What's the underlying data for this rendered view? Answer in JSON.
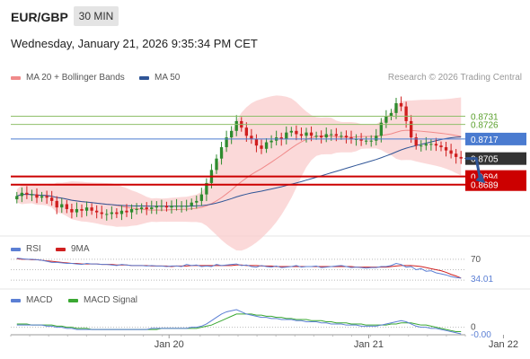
{
  "header": {
    "symbol": "EUR/GBP",
    "interval": "30 MIN",
    "datetime": "Wednesday, January 21, 2026 9:35:34 PM CET",
    "credit": "Research © 2026 Trading Central"
  },
  "legend": {
    "ma20": "MA 20 + Bollinger Bands",
    "ma50": "MA 50",
    "rsi": "RSI",
    "rsi_ma": "9MA",
    "macd": "MACD",
    "macd_signal": "MACD Signal"
  },
  "colors": {
    "candle_up": "#2e8b2e",
    "candle_down": "#d01f1f",
    "bollinger_fill": "#f9c9c9",
    "ma20": "#f08a8a",
    "ma50": "#2f5597",
    "level_green": "#8fbf6a",
    "level_blue": "#4a7bd0",
    "level_red": "#cc0000",
    "rsi": "#5b7fd4",
    "rsi_ma": "#d02020",
    "macd": "#5b7fd4",
    "macd_signal": "#3aa832"
  },
  "chart_data": [
    {
      "type": "candlestick",
      "title": "EUR/GBP 30 MIN",
      "x_tick_labels": [
        "Jan 20",
        "Jan 21",
        "Jan 22"
      ],
      "ylim": [
        0.8658,
        0.875
      ],
      "current_price": "0.8705",
      "levels": [
        {
          "value": "0.8731",
          "color": "green"
        },
        {
          "value": "0.8726",
          "color": "green"
        },
        {
          "value": "0.8717",
          "color": "blue"
        },
        {
          "value": "0.8694",
          "color": "red"
        },
        {
          "value": "0.8689",
          "color": "red"
        }
      ],
      "forecast_arrow": {
        "from": 0.8705,
        "to": 0.8691
      },
      "closes": [
        0.8682,
        0.8684,
        0.8683,
        0.8683,
        0.8681,
        0.8682,
        0.8681,
        0.8679,
        0.8675,
        0.8677,
        0.8674,
        0.8672,
        0.8674,
        0.8673,
        0.8675,
        0.8673,
        0.8672,
        0.8671,
        0.8671,
        0.8672,
        0.8671,
        0.8673,
        0.8672,
        0.8674,
        0.8674,
        0.8675,
        0.8674,
        0.8675,
        0.8676,
        0.8676,
        0.8675,
        0.8676,
        0.8676,
        0.8676,
        0.8676,
        0.8678,
        0.8679,
        0.8683,
        0.869,
        0.8698,
        0.8705,
        0.8712,
        0.8718,
        0.8722,
        0.8728,
        0.8724,
        0.8719,
        0.8717,
        0.8713,
        0.8711,
        0.8715,
        0.8716,
        0.8718,
        0.8717,
        0.8721,
        0.8722,
        0.872,
        0.8719,
        0.8721,
        0.8719,
        0.8719,
        0.8718,
        0.872,
        0.872,
        0.8719,
        0.8719,
        0.8718,
        0.8717,
        0.8717,
        0.8716,
        0.8716,
        0.8716,
        0.8719,
        0.8727,
        0.8731,
        0.8733,
        0.8739,
        0.8737,
        0.8728,
        0.8718,
        0.8713,
        0.8713,
        0.8714,
        0.8714,
        0.8713,
        0.8712,
        0.871,
        0.8708,
        0.8706,
        0.8705
      ]
    },
    {
      "type": "line",
      "title": "RSI",
      "ylim": [
        20,
        80
      ],
      "levels": [
        {
          "value": "70"
        }
      ],
      "last_value": "34.01",
      "series": [
        {
          "name": "RSI",
          "values": [
            72,
            71,
            70,
            70,
            69,
            68,
            66,
            64,
            64,
            63,
            62,
            62,
            61,
            60,
            62,
            61,
            61,
            60,
            60,
            59,
            58,
            60,
            59,
            58,
            58,
            58,
            57,
            58,
            57,
            57,
            56,
            57,
            57,
            56,
            60,
            58,
            59,
            56,
            57,
            56,
            60,
            58,
            59,
            60,
            61,
            58,
            59,
            56,
            55,
            58,
            56,
            55,
            57,
            54,
            55,
            56,
            58,
            55,
            56,
            56,
            57,
            54,
            55,
            56,
            57,
            58,
            56,
            54,
            55,
            54,
            53,
            54,
            54,
            56,
            56,
            58,
            62,
            60,
            55,
            56,
            50,
            52,
            47,
            48,
            44,
            42,
            40,
            37,
            35,
            34
          ]
        },
        {
          "name": "9MA",
          "values": [
            71,
            70,
            70,
            69,
            69,
            68,
            67,
            66,
            65,
            64,
            63,
            62,
            62,
            61,
            61,
            61,
            61,
            60,
            60,
            60,
            59,
            59,
            59,
            58,
            58,
            58,
            58,
            57,
            57,
            57,
            57,
            56,
            57,
            57,
            57,
            58,
            58,
            58,
            58,
            58,
            58,
            58,
            58,
            58,
            59,
            59,
            58,
            58,
            58,
            57,
            57,
            57,
            56,
            56,
            56,
            56,
            56,
            56,
            56,
            56,
            56,
            56,
            56,
            56,
            56,
            56,
            56,
            56,
            55,
            55,
            55,
            55,
            55,
            55,
            55,
            56,
            57,
            58,
            58,
            58,
            57,
            56,
            54,
            52,
            50,
            48,
            45,
            41,
            38,
            34
          ]
        }
      ]
    },
    {
      "type": "line",
      "title": "MACD",
      "levels": [
        {
          "value": "0"
        }
      ],
      "last_value": "-0.00",
      "series": [
        {
          "name": "MACD",
          "values": [
            2,
            2,
            2,
            2,
            2,
            2,
            1,
            1,
            0,
            0,
            -1,
            -1,
            -2,
            -2,
            -2,
            -2,
            -2,
            -2,
            -2,
            -2,
            -2,
            -2,
            -2,
            -2,
            -2,
            -2,
            -2,
            -1,
            -1,
            -1,
            -1,
            -1,
            -1,
            -1,
            -1,
            0,
            0,
            1,
            3,
            6,
            9,
            12,
            14,
            15,
            16,
            14,
            12,
            11,
            10,
            9,
            9,
            8,
            8,
            7,
            7,
            7,
            6,
            6,
            5,
            5,
            5,
            4,
            4,
            3,
            3,
            3,
            2,
            2,
            2,
            1,
            1,
            1,
            1,
            2,
            3,
            4,
            5,
            6,
            5,
            3,
            1,
            0,
            0,
            -1,
            -1,
            -2,
            -3,
            -4,
            -5,
            -6
          ]
        },
        {
          "name": "MACD Signal",
          "values": [
            3,
            3,
            3,
            2,
            2,
            2,
            2,
            2,
            1,
            1,
            0,
            0,
            -1,
            -1,
            -1,
            -2,
            -2,
            -2,
            -2,
            -2,
            -2,
            -2,
            -2,
            -2,
            -2,
            -2,
            -2,
            -2,
            -2,
            -1,
            -1,
            -1,
            -1,
            -1,
            -1,
            -1,
            -1,
            0,
            1,
            2,
            4,
            6,
            8,
            10,
            12,
            12,
            12,
            12,
            11,
            11,
            10,
            10,
            9,
            9,
            8,
            8,
            7,
            7,
            7,
            6,
            6,
            6,
            5,
            5,
            4,
            4,
            4,
            3,
            3,
            3,
            2,
            2,
            2,
            2,
            2,
            3,
            3,
            4,
            4,
            4,
            3,
            2,
            2,
            1,
            0,
            -1,
            -2,
            -3,
            -4,
            -4
          ]
        }
      ]
    }
  ]
}
